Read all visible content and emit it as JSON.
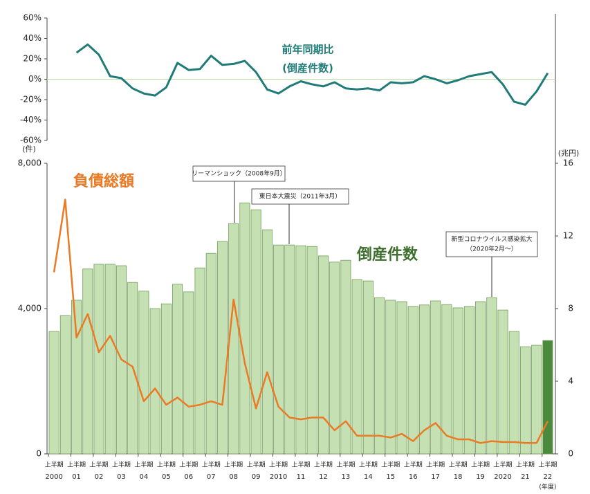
{
  "chart_data": [
    {
      "type": "line",
      "ylim": [
        -60,
        60
      ],
      "yticks": [
        {
          "value": -60,
          "label": "-60%"
        },
        {
          "value": -40,
          "label": "-40%"
        },
        {
          "value": -20,
          "label": "-20%"
        },
        {
          "value": 0,
          "label": "0%"
        },
        {
          "value": 20,
          "label": "20%"
        },
        {
          "value": 40,
          "label": "40%"
        },
        {
          "value": 60,
          "label": "60%"
        }
      ],
      "zero_line": true,
      "series": [
        {
          "name": "前年同期比",
          "name_sub": "(倒産件数)",
          "color": "#1f7b78",
          "values": [
            null,
            null,
            26,
            34,
            24,
            3,
            1,
            -9,
            -14,
            -16,
            -8,
            16,
            9,
            10,
            23,
            14,
            15,
            18,
            7,
            -10,
            -14,
            -7,
            -2,
            -5,
            -7,
            -3,
            -9,
            -10,
            -9,
            -11,
            -3,
            -4,
            -3,
            3,
            0,
            -4,
            -1,
            3,
            5,
            7,
            -5,
            -22,
            -25,
            -12,
            6
          ]
        }
      ]
    },
    {
      "type": "bar",
      "categories": [
        "上半期",
        null,
        "上半期",
        null,
        "上半期",
        null,
        "上半期",
        null,
        "上半期",
        null,
        "上半期",
        null,
        "上半期",
        null,
        "上半期",
        null,
        "上半期",
        null,
        "上半期",
        null,
        "上半期",
        null,
        "上半期",
        null,
        "上半期",
        null,
        "上半期",
        null,
        "上半期",
        null,
        "上半期",
        null,
        "上半期",
        null,
        "上半期",
        null,
        "上半期",
        null,
        "上半期",
        null,
        "上半期",
        null,
        "上半期",
        null,
        "上半期"
      ],
      "year_labels": [
        "2000",
        "01",
        "02",
        "03",
        "04",
        "05",
        "06",
        "07",
        "08",
        "09",
        "2010",
        "11",
        "12",
        "13",
        "14",
        "15",
        "16",
        "17",
        "18",
        "19",
        "2020",
        "21",
        "22"
      ],
      "x_unit": "(年度)",
      "ylim": [
        0,
        8000
      ],
      "yticks": [
        0,
        {
          "value": 4000,
          "label": "4,000"
        },
        {
          "value": 8000,
          "label": "8,000"
        }
      ],
      "y_unit": "(件)",
      "y2lim": [
        0,
        16
      ],
      "y2ticks": [
        0,
        4,
        8,
        12,
        16
      ],
      "y2_unit": "(兆円)",
      "series": [
        {
          "name": "倒産件数",
          "type": "bar",
          "color": "#c5e0b3",
          "edge_color": "#6f9e55",
          "latest_color": "#4b8a3c",
          "label_color": "#3f6f2f",
          "values": [
            3370,
            3810,
            4230,
            5090,
            5220,
            5220,
            5180,
            4720,
            4480,
            4000,
            4130,
            4670,
            4460,
            5120,
            5520,
            5850,
            6340,
            6910,
            6720,
            6170,
            5750,
            5750,
            5730,
            5710,
            5450,
            5280,
            5330,
            4800,
            4760,
            4300,
            4230,
            4190,
            4060,
            4100,
            4210,
            4110,
            4020,
            4060,
            4190,
            4300,
            3960,
            3370,
            2950,
            2990,
            3120
          ]
        },
        {
          "name": "負債総額",
          "type": "line",
          "axis": "y2",
          "color": "#ea7a24",
          "values": [
            10.0,
            14.0,
            6.4,
            7.7,
            5.6,
            6.5,
            5.2,
            4.8,
            2.9,
            3.6,
            2.7,
            3.1,
            2.6,
            2.7,
            2.9,
            2.7,
            8.5,
            5.0,
            2.5,
            4.5,
            2.6,
            2.0,
            1.9,
            2.0,
            2.0,
            1.3,
            1.8,
            1.0,
            1.0,
            1.0,
            0.9,
            1.1,
            0.7,
            1.3,
            1.7,
            1.0,
            0.8,
            0.8,
            0.6,
            0.7,
            0.65,
            0.65,
            0.6,
            0.6,
            1.8
          ]
        }
      ],
      "annotations": [
        [
          "リーマンショック（2008年9月）"
        ],
        [
          "東日本大震災（2011年3月）"
        ],
        [
          "新型コロナウイルス感染拡大",
          "（2020年2月～）"
        ]
      ]
    }
  ]
}
